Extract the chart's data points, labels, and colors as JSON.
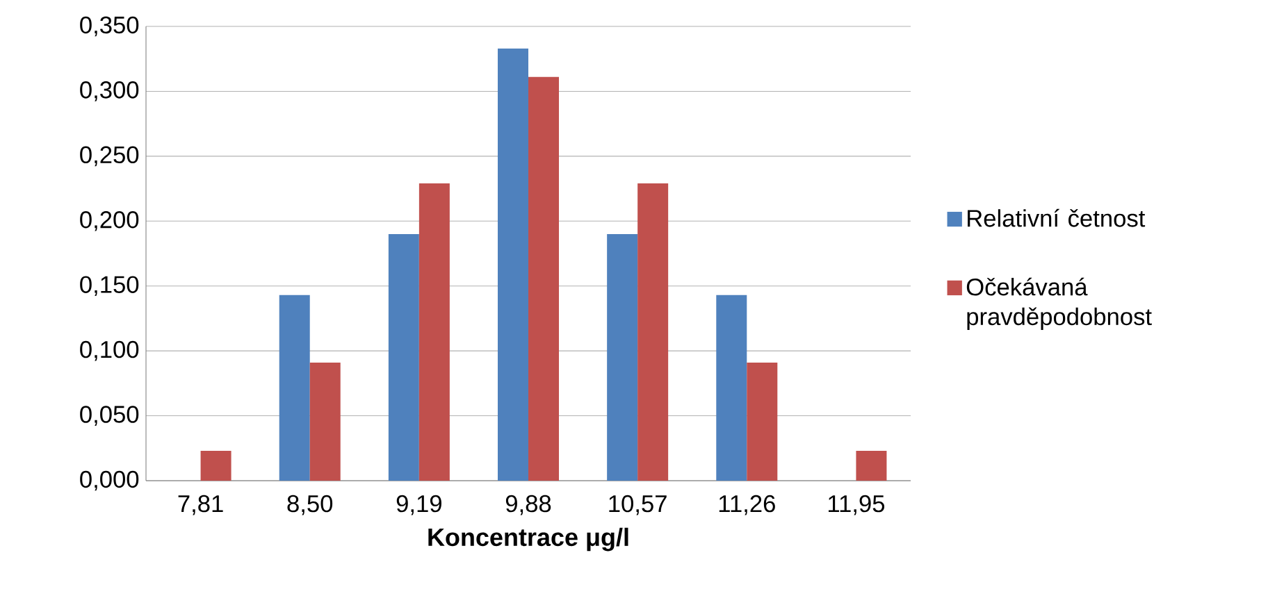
{
  "chart_data": {
    "type": "bar",
    "xlabel": "Koncentrace μg/l",
    "categories": [
      "7,81",
      "8,50",
      "9,19",
      "9,88",
      "10,57",
      "11,26",
      "11,95"
    ],
    "series": [
      {
        "name": "Relativní četnost",
        "color": "#4f81bd",
        "values": [
          0,
          0.143,
          0.19,
          0.333,
          0.19,
          0.143,
          0
        ]
      },
      {
        "name": "Očekávaná pravděpodobnost",
        "color": "#c0504d",
        "values": [
          0.023,
          0.091,
          0.229,
          0.311,
          0.229,
          0.091,
          0.023
        ]
      }
    ],
    "ylim": [
      0,
      0.35
    ],
    "yticks": [
      {
        "value": 0,
        "label": "0,000"
      },
      {
        "value": 0.05,
        "label": "0,050"
      },
      {
        "value": 0.1,
        "label": "0,100"
      },
      {
        "value": 0.15,
        "label": "0,150"
      },
      {
        "value": 0.2,
        "label": "0,200"
      },
      {
        "value": 0.25,
        "label": "0,250"
      },
      {
        "value": 0.3,
        "label": "0,300"
      },
      {
        "value": 0.35,
        "label": "0,350"
      }
    ],
    "grid": "y",
    "legend": "right"
  }
}
